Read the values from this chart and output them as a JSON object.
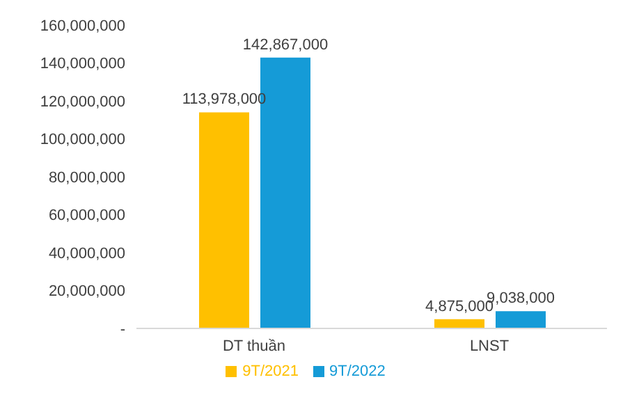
{
  "chart_data": {
    "type": "bar",
    "categories": [
      "DT thuần",
      "LNST"
    ],
    "series": [
      {
        "name": "9T/2021",
        "color": "#ffc000",
        "values": [
          113978000,
          4875000
        ],
        "value_labels": [
          "113,978,000",
          "4,875,000"
        ]
      },
      {
        "name": "9T/2022",
        "color": "#159bd7",
        "values": [
          142867000,
          9038000
        ],
        "value_labels": [
          "142,867,000",
          "9,038,000"
        ]
      }
    ],
    "ylim": [
      0,
      160000000
    ],
    "yticks": [
      {
        "value": 0,
        "label": "-"
      },
      {
        "value": 20000000,
        "label": "20,000,000"
      },
      {
        "value": 40000000,
        "label": "40,000,000"
      },
      {
        "value": 60000000,
        "label": "60,000,000"
      },
      {
        "value": 80000000,
        "label": "80,000,000"
      },
      {
        "value": 100000000,
        "label": "100,000,000"
      },
      {
        "value": 120000000,
        "label": "120,000,000"
      },
      {
        "value": 140000000,
        "label": "140,000,000"
      },
      {
        "value": 160000000,
        "label": "160,000,000"
      }
    ],
    "grid": false,
    "legend": "bottom"
  }
}
